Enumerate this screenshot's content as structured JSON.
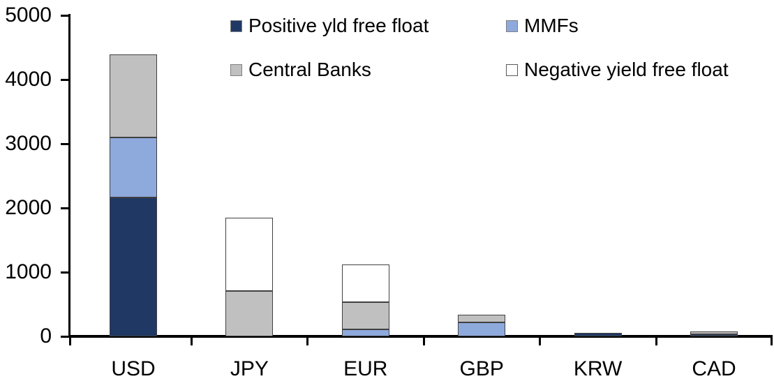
{
  "figure": {
    "background": "#ffffff",
    "axis_color": "#000000",
    "segment_border_color": "#404040"
  },
  "chart_data": {
    "type": "bar",
    "stacked": true,
    "title": "",
    "xlabel": "",
    "ylabel": "",
    "categories": [
      "USD",
      "JPY",
      "EUR",
      "GBP",
      "KRW",
      "CAD"
    ],
    "series": [
      {
        "name": "Positive yld free float",
        "color": "#1f3864",
        "values": [
          2160,
          0,
          0,
          0,
          55,
          30
        ]
      },
      {
        "name": "MMFs",
        "color": "#8ea9dc",
        "values": [
          940,
          0,
          110,
          220,
          0,
          0
        ]
      },
      {
        "name": "Central Banks",
        "color": "#c0c0c0",
        "values": [
          1290,
          710,
          425,
          115,
          0,
          50
        ]
      },
      {
        "name": "Negative yield free float",
        "color": "#ffffff",
        "values": [
          0,
          1140,
          580,
          0,
          0,
          0
        ]
      }
    ],
    "totals": {
      "USD": 4390,
      "JPY": 1850,
      "EUR": 1115,
      "GBP": 335,
      "KRW": 55,
      "CAD": 80
    },
    "ylim": [
      0,
      5000
    ],
    "yticks": [
      "0",
      "1000",
      "2000",
      "3000",
      "4000",
      "5000"
    ],
    "grid": false,
    "legend": {
      "position": "top",
      "columns": 2,
      "entries": [
        "Positive yld free float",
        "MMFs",
        "Central Banks",
        "Negative yield free float"
      ]
    }
  }
}
